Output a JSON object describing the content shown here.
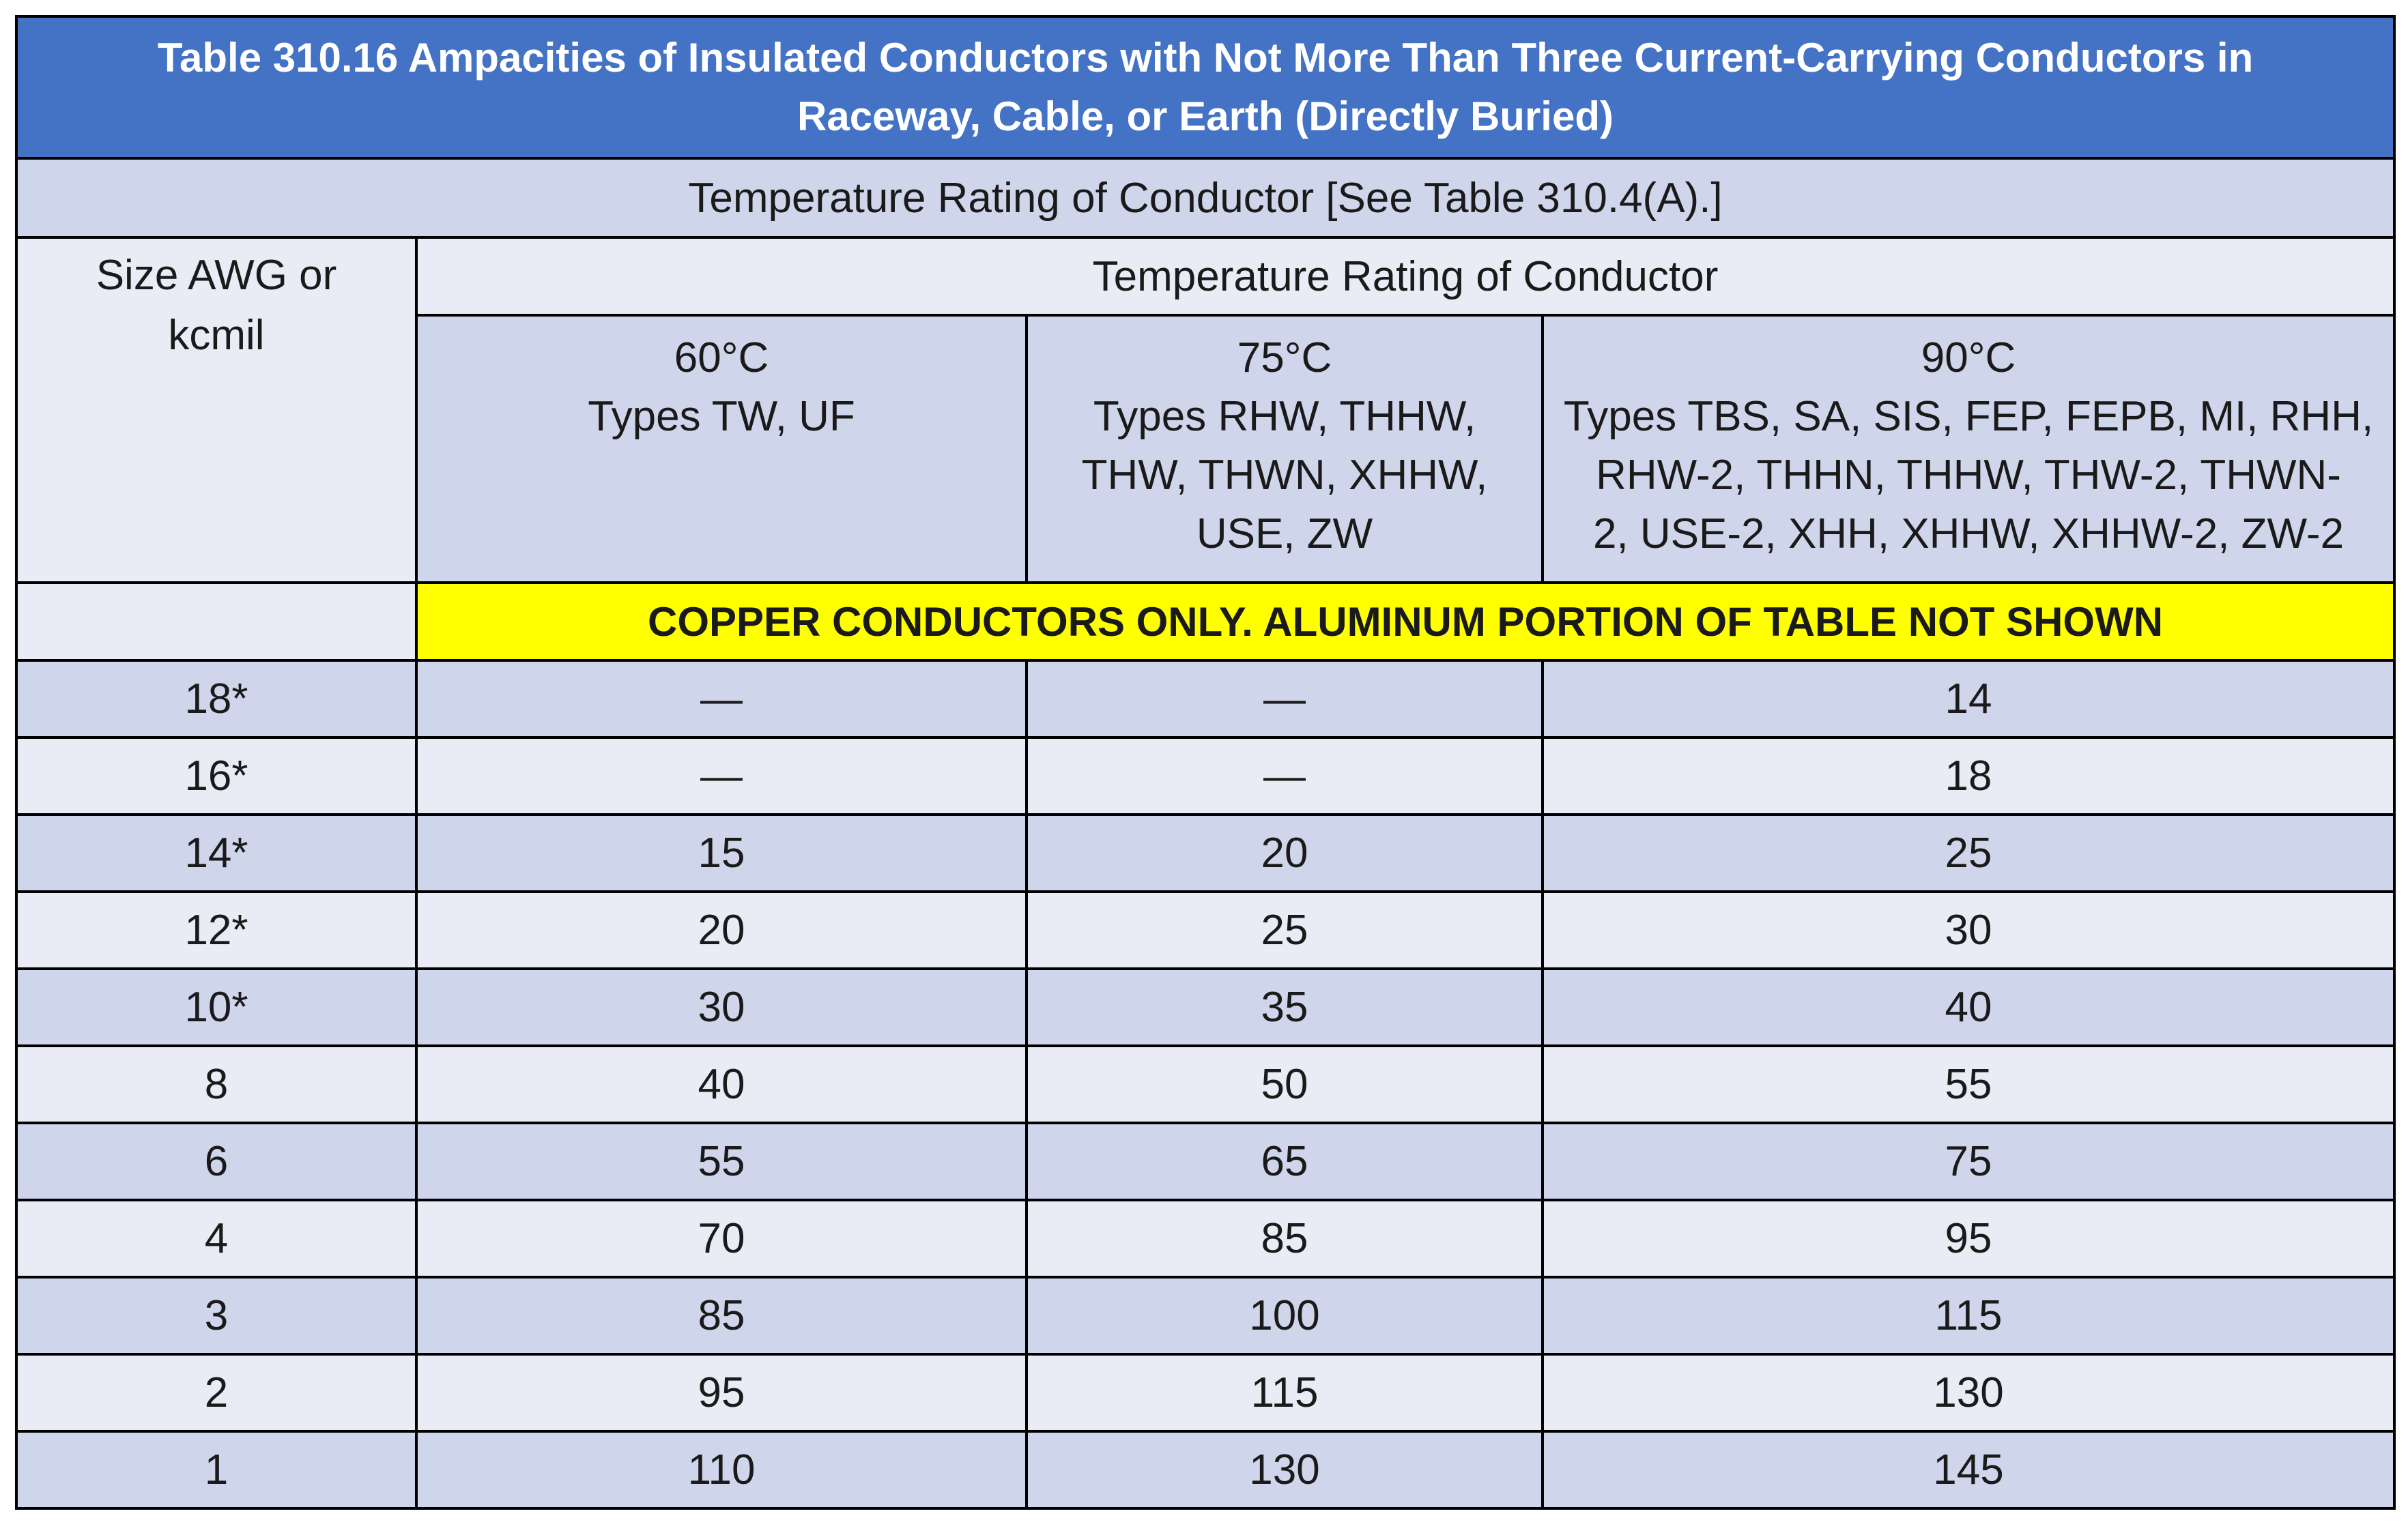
{
  "table": {
    "title_line1": "Table 310.16 Ampacities of Insulated Conductors with Not More Than Three Current-Carrying Conductors in",
    "title_line2": "Raceway, Cable, or Earth (Directly Buried)",
    "subtitle": "Temperature Rating of Conductor [See Table 310.4(A).]",
    "size_header_line1": "Size AWG or",
    "size_header_line2": "kcmil",
    "temp_header": "Temperature Rating of Conductor",
    "columns": [
      {
        "temp": "60°C",
        "types": [
          "Types TW, UF"
        ]
      },
      {
        "temp": "75°C",
        "types": [
          "Types RHW, THHW,",
          "THW, THWN, XHHW,",
          "USE, ZW"
        ]
      },
      {
        "temp": "90°C",
        "types": [
          "Types TBS, SA, SIS, FEP, FEPB, MI, RHH,",
          "RHW-2, THHN, THHW, THW-2, THWN-",
          "2, USE-2, XHH, XHHW, XHHW-2, ZW-2"
        ]
      }
    ],
    "note": "COPPER CONDUCTORS ONLY. ALUMINUM PORTION OF TABLE NOT SHOWN",
    "rows": [
      {
        "size": "18*",
        "c60": "—",
        "c75": "—",
        "c90": "14"
      },
      {
        "size": "16*",
        "c60": "—",
        "c75": "—",
        "c90": "18"
      },
      {
        "size": "14*",
        "c60": "15",
        "c75": "20",
        "c90": "25"
      },
      {
        "size": "12*",
        "c60": "20",
        "c75": "25",
        "c90": "30"
      },
      {
        "size": "10*",
        "c60": "30",
        "c75": "35",
        "c90": "40"
      },
      {
        "size": "8",
        "c60": "40",
        "c75": "50",
        "c90": "55"
      },
      {
        "size": "6",
        "c60": "55",
        "c75": "65",
        "c90": "75"
      },
      {
        "size": "4",
        "c60": "70",
        "c75": "85",
        "c90": "95"
      },
      {
        "size": "3",
        "c60": "85",
        "c75": "100",
        "c90": "115"
      },
      {
        "size": "2",
        "c60": "95",
        "c75": "115",
        "c90": "130"
      },
      {
        "size": "1",
        "c60": "110",
        "c75": "130",
        "c90": "145"
      }
    ]
  },
  "colors": {
    "title_bg": "#4472c4",
    "band_dark": "#cfd5ea",
    "band_light": "#e9ebf5",
    "note_bg": "#ffff00"
  }
}
